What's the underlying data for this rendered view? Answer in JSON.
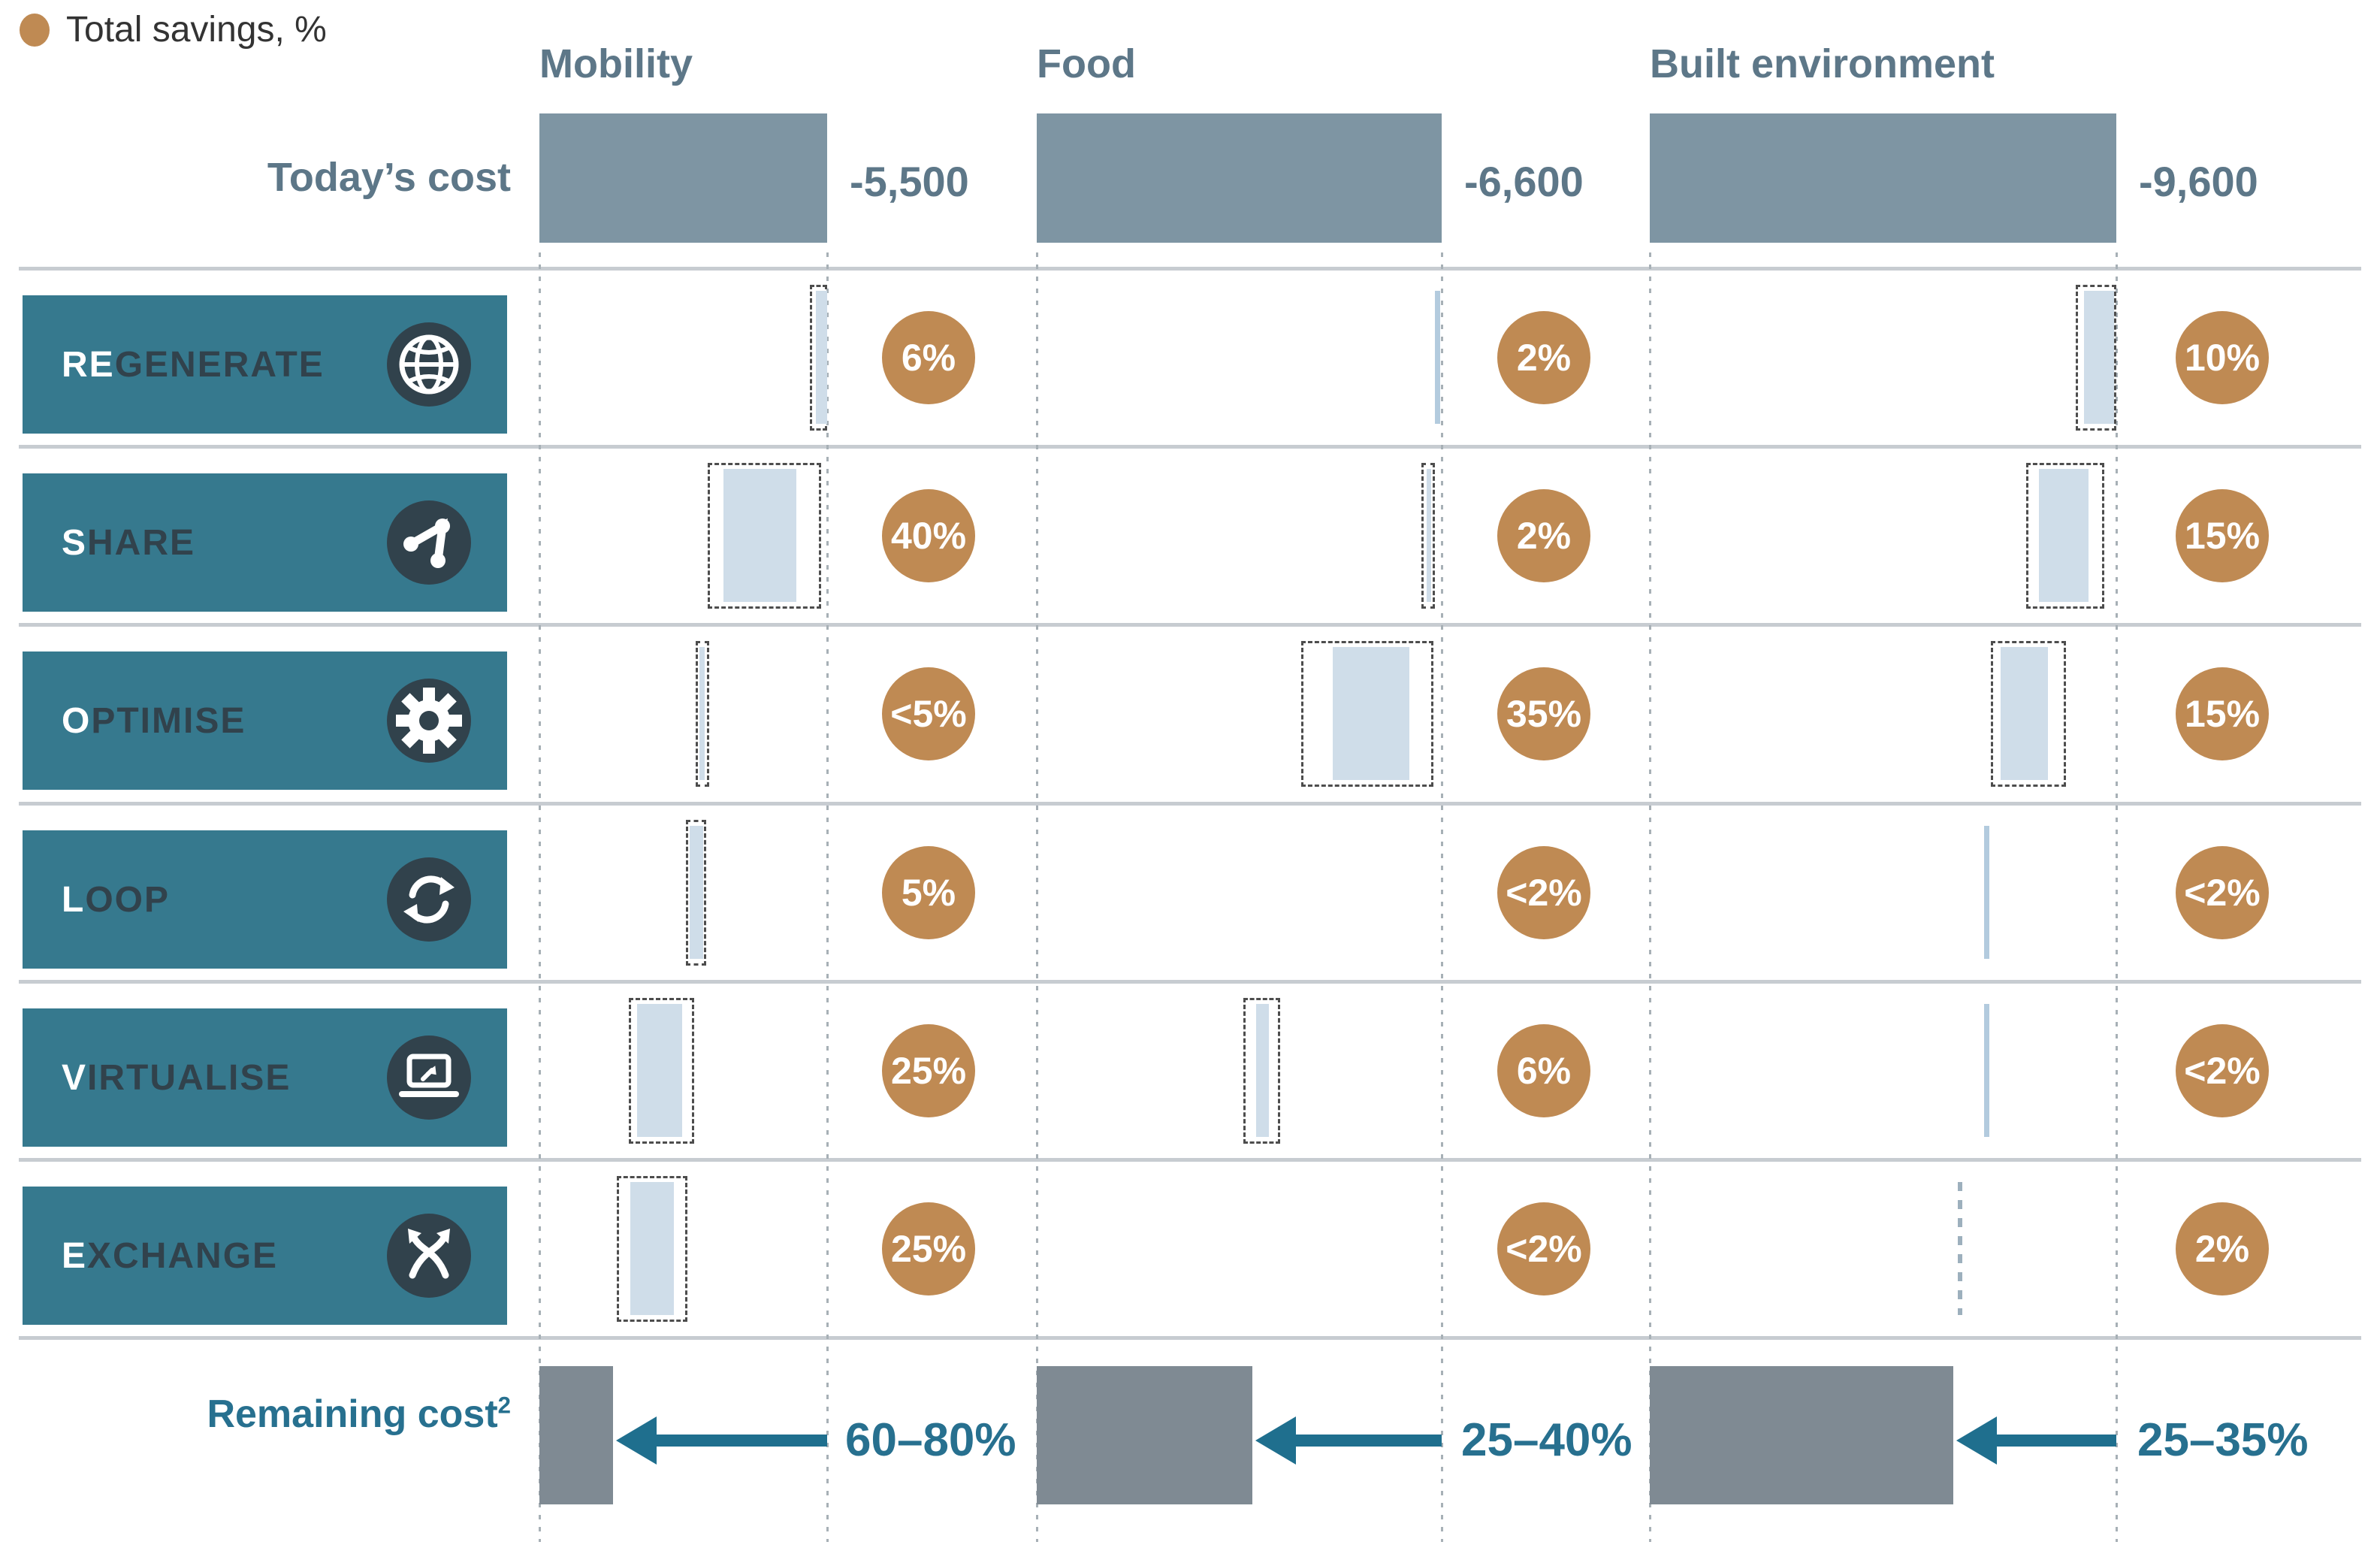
{
  "legend": {
    "label": "Total savings, %"
  },
  "row_headers": {
    "todays_cost": "Today’s cost",
    "remaining_cost": "Remaining cost",
    "remaining_cost_superscript": "2"
  },
  "colors": {
    "teal_box": "#36798e",
    "box_text_dark": "#31424c",
    "box_text_light": "#ffffff",
    "icon_circle": "#31424c",
    "orange_badge": "#bf8a53",
    "bar_fill": "#cfdde9",
    "bar_line": "#b3cbde",
    "bar_dashes": "#9db0bd",
    "range_border": "#4d4d4d",
    "todays_bar": "#7e95a3",
    "remaining_bar": "#7f8a93",
    "header_text": "#5d7788",
    "arrow": "#1f6f8e",
    "separator": "#c7ccd1",
    "gridline": "#a7b0b6",
    "legend_text": "#333333"
  },
  "chart_data": {
    "type": "table",
    "title": "Total savings, %",
    "sectors": [
      {
        "name": "Mobility",
        "todays_cost": "-5,500",
        "remaining_reduction": "60–80%",
        "remaining_bar_pct": 25.6
      },
      {
        "name": "Food",
        "todays_cost": "-6,600",
        "remaining_reduction": "25–40%",
        "remaining_bar_pct": 53.2
      },
      {
        "name": "Built environment",
        "todays_cost": "-9,600",
        "remaining_reduction": "25–35%",
        "remaining_bar_pct": 65.0
      }
    ],
    "levers": [
      {
        "label_prefix": "RE",
        "label_rest": "GENERATE",
        "icon": "globe-icon",
        "savings": [
          "6%",
          "2%",
          "10%"
        ],
        "bars": [
          {
            "kind": "bar",
            "fill": [
              96.0,
              100.0
            ],
            "range": [
              94.0,
              100.0
            ]
          },
          {
            "kind": "line",
            "pos": 98.8
          },
          {
            "kind": "bar",
            "fill": [
              93.0,
              99.5
            ],
            "range": [
              91.3,
              100.0
            ]
          }
        ]
      },
      {
        "label_prefix": "S",
        "label_rest": "HARE",
        "icon": "share-icon",
        "savings": [
          "40%",
          "2%",
          "15%"
        ],
        "bars": [
          {
            "kind": "bar",
            "fill": [
              64.0,
              89.3
            ],
            "range": [
              58.5,
              98.0
            ]
          },
          {
            "kind": "bar",
            "fill": [
              96.2,
              97.2
            ],
            "range": [
              95.0,
              98.3
            ]
          },
          {
            "kind": "bar",
            "fill": [
              83.4,
              94.0
            ],
            "range": [
              80.7,
              97.4
            ]
          }
        ]
      },
      {
        "label_prefix": "O",
        "label_rest": "PTIMISE",
        "icon": "gear-icon",
        "savings": [
          "<5%",
          "35%",
          "15%"
        ],
        "bars": [
          {
            "kind": "bar",
            "fill": [
              55.6,
              57.4
            ],
            "range": [
              54.2,
              58.8
            ]
          },
          {
            "kind": "bar",
            "fill": [
              73.1,
              92.0
            ],
            "range": [
              65.3,
              98.0
            ]
          },
          {
            "kind": "bar",
            "fill": [
              75.2,
              85.3
            ],
            "range": [
              73.1,
              89.2
            ]
          }
        ]
      },
      {
        "label_prefix": "L",
        "label_rest": "OOP",
        "icon": "loop-icon",
        "savings": [
          "5%",
          "<2%",
          "<2%"
        ],
        "bars": [
          {
            "kind": "bar",
            "fill": [
              52.2,
              56.9
            ],
            "range": [
              51.0,
              58.0
            ]
          },
          {
            "kind": "none"
          },
          {
            "kind": "line",
            "pos": 72.1
          }
        ]
      },
      {
        "label_prefix": "V",
        "label_rest": "IRTUALISE",
        "icon": "laptop-icon",
        "savings": [
          "25%",
          "6%",
          "<2%"
        ],
        "bars": [
          {
            "kind": "bar",
            "fill": [
              33.9,
              49.6
            ],
            "range": [
              31.1,
              53.8
            ]
          },
          {
            "kind": "bar",
            "fill": [
              54.2,
              57.4
            ],
            "range": [
              51.0,
              60.0
            ]
          },
          {
            "kind": "line",
            "pos": 72.1
          }
        ]
      },
      {
        "label_prefix": "E",
        "label_rest": "XCHANGE",
        "icon": "exchange-icon",
        "savings": [
          "25%",
          "<2%",
          "2%"
        ],
        "bars": [
          {
            "kind": "bar",
            "fill": [
              31.6,
              46.7
            ],
            "range": [
              26.9,
              51.4
            ]
          },
          {
            "kind": "none"
          },
          {
            "kind": "dashes",
            "pos": 66.5
          }
        ]
      }
    ]
  }
}
